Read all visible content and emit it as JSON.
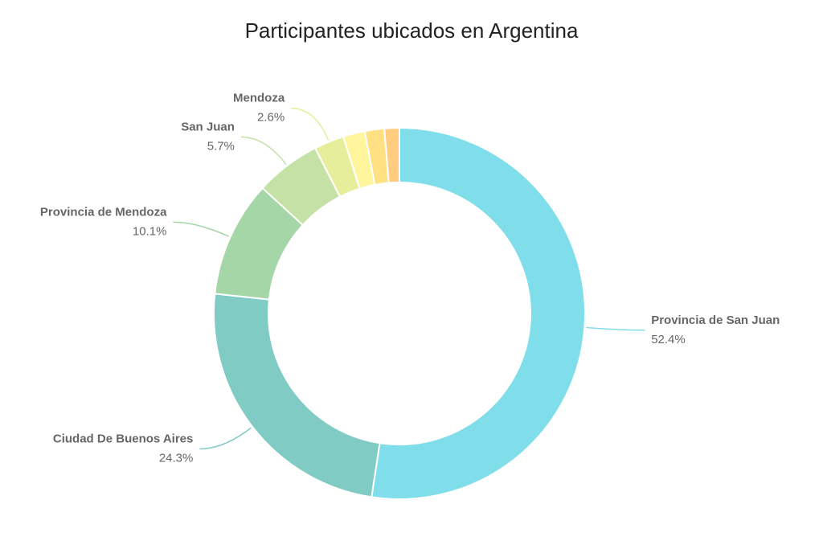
{
  "chart_data": {
    "type": "pie",
    "title": "Participantes ubicados en Argentina",
    "categories": [
      "Provincia de San Juan",
      "Ciudad De Buenos Aires",
      "Provincia de Mendoza",
      "San Juan",
      "Mendoza",
      null,
      null,
      null
    ],
    "values": [
      52.4,
      24.3,
      10.1,
      5.7,
      2.6,
      1.9,
      1.7,
      1.3
    ],
    "value_labels": [
      "52.4%",
      "24.3%",
      "10.1%",
      "5.7%",
      "2.6%",
      null,
      null,
      null
    ],
    "colors": [
      "#80deea",
      "#80cbc4",
      "#a5d6a7",
      "#c5e1a5",
      "#e6ee9c",
      "#fff59d",
      "#ffe082",
      "#ffcc80"
    ],
    "donut": true
  }
}
